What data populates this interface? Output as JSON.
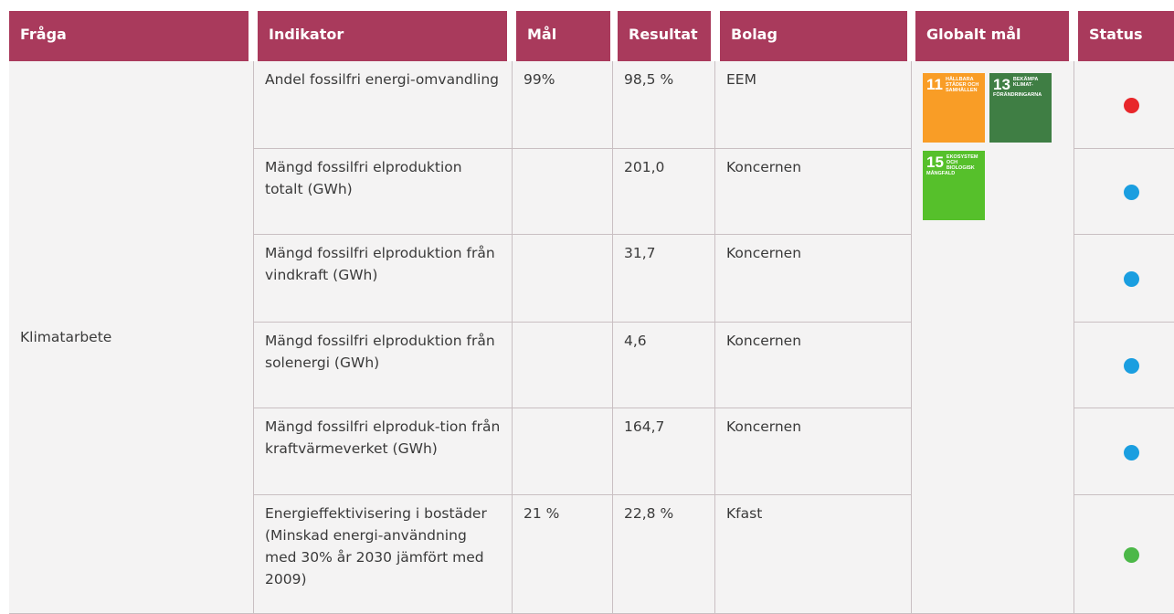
{
  "table": {
    "columns": [
      "Fråga",
      "Indikator",
      "Mål",
      "Resultat",
      "Bolag",
      "Globalt mål",
      "Status"
    ],
    "topic": "Klimatarbete",
    "goals": [
      {
        "number": "11",
        "label": "HÅLLBARA STÄDER OCH SAMHÄLLEN",
        "color": "#f99d26"
      },
      {
        "number": "13",
        "label": "BEKÄMPA KLIMAT-FÖRÄNDRINGARNA",
        "color": "#3f7e44"
      },
      {
        "number": "15",
        "label": "EKOSYSTEM OCH BIOLOGISK MÅNGFALD",
        "color": "#56c02b"
      }
    ],
    "rows": [
      {
        "indikator": "Andel fossilfri energi-omvandling",
        "mal": "99%",
        "resultat": "98,5 %",
        "bolag": "EEM",
        "status": "#e8262a"
      },
      {
        "indikator": "Mängd fossilfri elproduktion totalt (GWh)",
        "resultat": "201,0",
        "bolag": "Koncernen",
        "status": "#1a9ee0"
      },
      {
        "indikator": "Mängd fossilfri elproduktion från vindkraft (GWh)",
        "resultat": "31,7",
        "bolag": "Koncernen",
        "status": "#1a9ee0"
      },
      {
        "indikator": "Mängd fossilfri elproduktion från solenergi (GWh)",
        "resultat": "4,6",
        "bolag": "Koncernen",
        "status": "#1a9ee0"
      },
      {
        "indikator": "Mängd fossilfri elproduk-tion från kraftvärmeverket (GWh)",
        "resultat": "164,7",
        "bolag": "Koncernen",
        "status": "#1a9ee0"
      },
      {
        "indikator": "Energieffektivisering i bostäder (Minskad energi-användning med 30% år 2030 jämfört med 2009)",
        "mal": "21 %",
        "resultat": "22,8 %",
        "bolag": "Kfast",
        "status": "#4cb848"
      }
    ]
  }
}
